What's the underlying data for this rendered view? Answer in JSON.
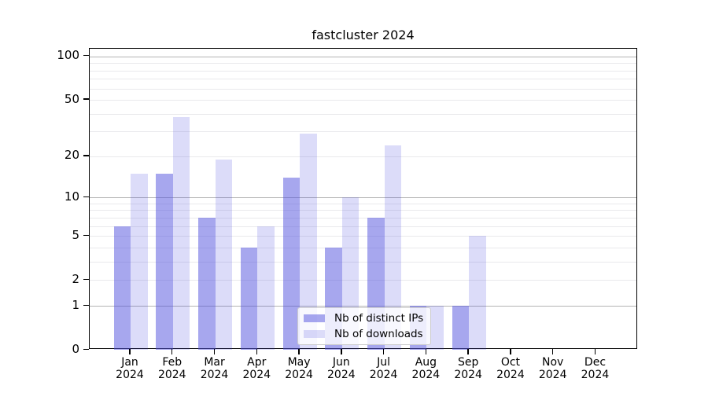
{
  "title": "fastcluster 2024",
  "chart_data": {
    "type": "bar",
    "title": "fastcluster 2024",
    "xlabel": "",
    "ylabel": "",
    "scale": "log1p",
    "grid": true,
    "legend_position": "lower center",
    "ylim": [
      0,
      113
    ],
    "yticks": [
      0,
      1,
      2,
      5,
      10,
      20,
      50,
      100
    ],
    "categories": [
      "Jan 2024",
      "Feb 2024",
      "Mar 2024",
      "Apr 2024",
      "May 2024",
      "Jun 2024",
      "Jul 2024",
      "Aug 2024",
      "Sep 2024",
      "Oct 2024",
      "Nov 2024",
      "Dec 2024"
    ],
    "series": [
      {
        "name": "Nb of distinct IPs",
        "color_hex": "#a7a7ee",
        "color": "rgba(80,80,221,0.50)",
        "values": [
          6,
          15,
          7,
          4,
          14,
          4,
          7,
          1,
          1,
          0,
          0,
          0
        ]
      },
      {
        "name": "Nb of downloads",
        "color_hex": "#dcdcf9",
        "color": "rgba(61,61,221,0.18)",
        "values": [
          15,
          38,
          19,
          6,
          29,
          10,
          24,
          1,
          5,
          0,
          0,
          0
        ]
      }
    ],
    "gridline_colors": {
      "major": "#b3b3b3",
      "minor": "#e9e9ec"
    },
    "axis_color": "#000000"
  },
  "legend": {
    "item1": "Nb of distinct IPs",
    "item2": "Nb of downloads"
  }
}
